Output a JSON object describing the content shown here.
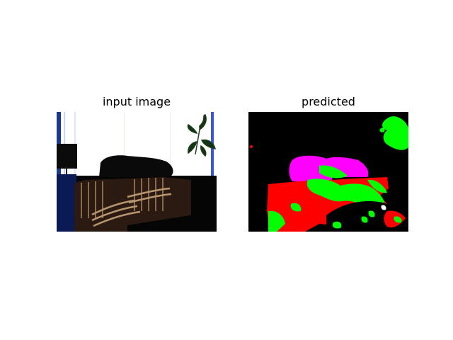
{
  "figure": {
    "panels": [
      {
        "title": "input image"
      },
      {
        "title": "predicted"
      }
    ]
  },
  "colors": {
    "background": "#000000",
    "segment_red": "#ff0000",
    "segment_green": "#00ff00",
    "segment_magenta": "#ff00ff"
  }
}
